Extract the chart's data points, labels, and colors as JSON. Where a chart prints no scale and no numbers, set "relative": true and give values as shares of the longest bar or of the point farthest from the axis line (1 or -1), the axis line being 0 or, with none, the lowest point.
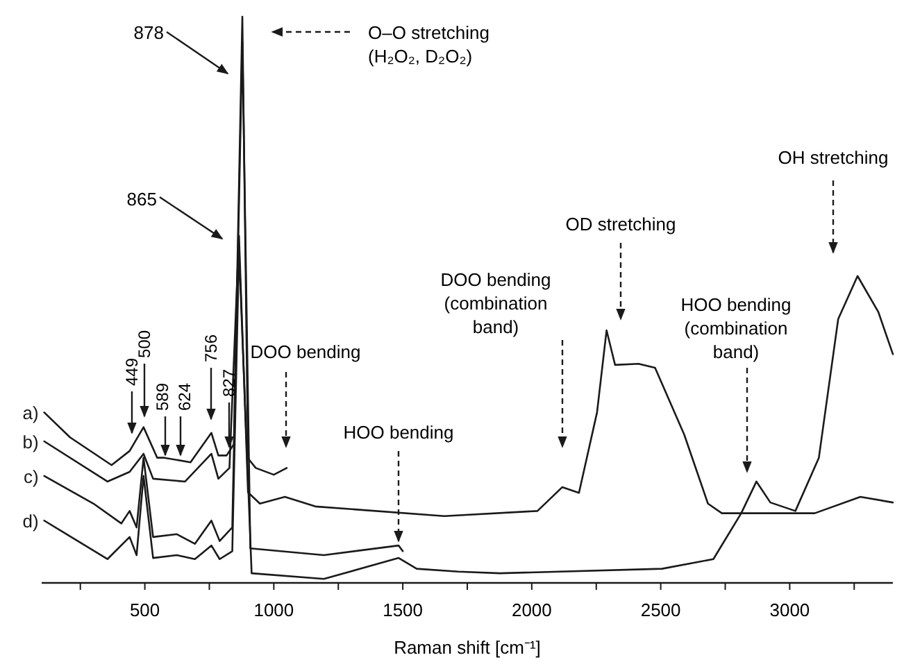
{
  "chart_data": {
    "type": "line",
    "relative": true,
    "xlabel": "Raman shift [cm⁻¹]",
    "xlim": [
      100,
      3400
    ],
    "xticks": [
      {
        "value": 250,
        "label": null
      },
      500,
      {
        "value": 750,
        "label": null
      },
      1000,
      {
        "value": 1250,
        "label": null
      },
      1500,
      {
        "value": 1750,
        "label": null
      },
      2000,
      {
        "value": 2250,
        "label": null
      },
      2500,
      {
        "value": 2750,
        "label": null
      },
      3000,
      {
        "value": 3250,
        "label": null
      }
    ],
    "legend": false,
    "grid": false,
    "series": [
      {
        "name": "a)",
        "color": "#1a1a1a",
        "x": [
          110,
          210,
          371,
          441,
          495,
          548,
          575,
          677,
          758,
          785,
          817,
          845,
          878,
          900,
          930,
          1000,
          1050
        ],
        "values": [
          0.301,
          0.257,
          0.208,
          0.233,
          0.275,
          0.221,
          0.221,
          0.213,
          0.265,
          0.225,
          0.225,
          0.245,
          1,
          0.22,
          0.203,
          0.191,
          0.203
        ]
      },
      {
        "name": "b)",
        "color": "#1a1a1a",
        "x": [
          110,
          355,
          441,
          495,
          532,
          656,
          758,
          785,
          828,
          865,
          900,
          946,
          1043,
          1161,
          1661,
          2022,
          2118,
          2183,
          2253,
          2290,
          2323,
          2414,
          2478,
          2591,
          2683,
          2737,
          3097,
          3274,
          3400
        ],
        "values": [
          0.25,
          0.179,
          0.196,
          0.228,
          0.184,
          0.179,
          0.228,
          0.184,
          0.203,
          0.613,
          0.16,
          0.14,
          0.152,
          0.135,
          0.118,
          0.127,
          0.169,
          0.159,
          0.301,
          0.446,
          0.385,
          0.387,
          0.38,
          0.262,
          0.14,
          0.123,
          0.123,
          0.152,
          0.142
        ]
      },
      {
        "name": "c)",
        "color": "#1a1a1a",
        "x": [
          110,
          301,
          409,
          441,
          468,
          495,
          532,
          624,
          694,
          758,
          790,
          839,
          878,
          909,
          1194,
          1484,
          1500
        ],
        "values": [
          0.189,
          0.14,
          0.105,
          0.127,
          0.098,
          0.221,
          0.081,
          0.086,
          0.069,
          0.11,
          0.074,
          0.098,
          0.956,
          0.061,
          0.049,
          0.066,
          0.056
        ]
      },
      {
        "name": "d)",
        "color": "#1a1a1a",
        "x": [
          110,
          355,
          441,
          468,
          495,
          532,
          624,
          694,
          758,
          790,
          839,
          865,
          914,
          1194,
          1484,
          1554,
          1715,
          1876,
          2505,
          2704,
          2812,
          2871,
          2925,
          3022,
          3113,
          3188,
          3263,
          3344,
          3400
        ],
        "values": [
          0.11,
          0.042,
          0.081,
          0.049,
          0.189,
          0.044,
          0.049,
          0.042,
          0.066,
          0.042,
          0.056,
          0.588,
          0.017,
          0.007,
          0.044,
          0.025,
          0.02,
          0.017,
          0.025,
          0.042,
          0.123,
          0.179,
          0.142,
          0.127,
          0.221,
          0.466,
          0.542,
          0.478,
          0.404
        ]
      }
    ],
    "annotations": [
      "449",
      "500",
      "589",
      "624",
      "756",
      "827",
      "878",
      "865",
      "O–O stretching\n(H₂O₂, D₂O₂)",
      "DOO bending",
      "HOO bending",
      "DOO bending\n(combination\nband)",
      "OD stretching",
      "HOO bending\n(combination\nband)",
      "OH stretching"
    ]
  }
}
